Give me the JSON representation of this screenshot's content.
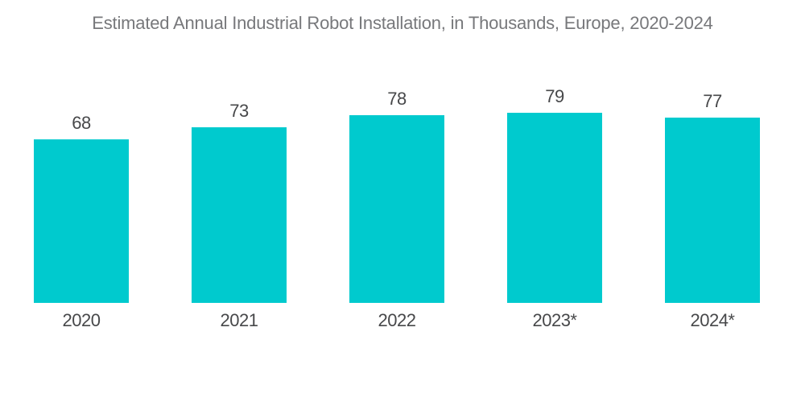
{
  "chart_data": {
    "type": "bar",
    "title": "Estimated Annual Industrial Robot Installation, in Thousands, Europe, 2020-2024",
    "categories": [
      "2020",
      "2021",
      "2022",
      "2023*",
      "2024*"
    ],
    "values": [
      68,
      73,
      78,
      79,
      77
    ],
    "xlabel": "",
    "ylabel": "",
    "ylim": [
      0,
      79
    ],
    "grid": false,
    "legend": false,
    "value_labels_shown": true,
    "colors": {
      "bar": "#00CACE",
      "title_text": "#77787B",
      "label_text": "#47484A",
      "background": "#FFFFFF"
    }
  }
}
